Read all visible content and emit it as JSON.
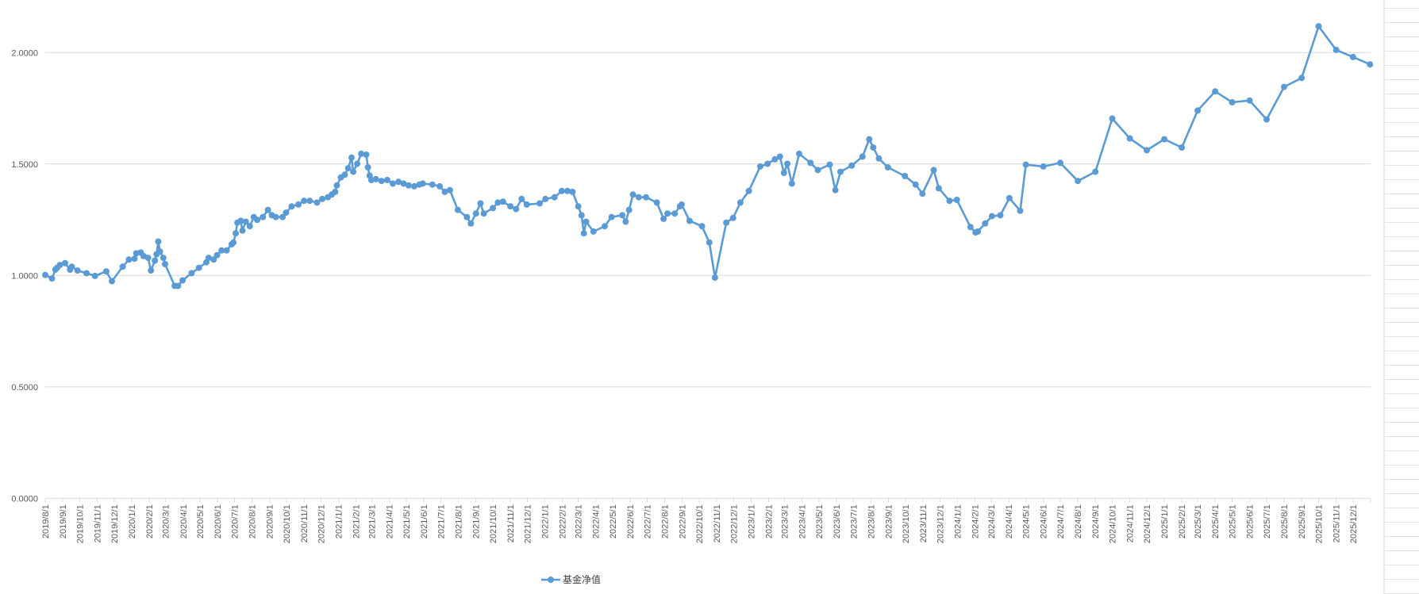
{
  "chart_data": {
    "type": "line",
    "title": "",
    "xlabel": "",
    "ylabel": "",
    "x_axis_type": "date",
    "xlim": [
      "2019-08-01",
      "2026-01-01"
    ],
    "ylim": [
      0,
      2.0
    ],
    "y_ticks": [
      "0.0000",
      "0.5000",
      "1.0000",
      "1.5000",
      "2.0000"
    ],
    "x_tick_labels": [
      "2019/8/1",
      "2019/9/1",
      "2019/10/1",
      "2019/11/1",
      "2019/12/1",
      "2020/1/1",
      "2020/2/1",
      "2020/3/1",
      "2020/4/1",
      "2020/5/1",
      "2020/6/1",
      "2020/7/1",
      "2020/8/1",
      "2020/9/1",
      "2020/10/1",
      "2020/11/1",
      "2020/12/1",
      "2021/1/1",
      "2021/2/1",
      "2021/3/1",
      "2021/4/1",
      "2021/5/1",
      "2021/6/1",
      "2021/7/1",
      "2021/8/1",
      "2021/9/1",
      "2021/10/1",
      "2021/11/1",
      "2021/12/1",
      "2022/1/1",
      "2022/2/1",
      "2022/3/1",
      "2022/4/1",
      "2022/5/1",
      "2022/6/1",
      "2022/7/1",
      "2022/8/1",
      "2022/9/1",
      "2022/10/1",
      "2022/11/1",
      "2022/12/1",
      "2023/1/1",
      "2023/2/1",
      "2023/3/1",
      "2023/4/1",
      "2023/5/1",
      "2023/6/1",
      "2023/7/1",
      "2023/8/1",
      "2023/9/1",
      "2023/10/1",
      "2023/11/1",
      "2023/12/1",
      "2024/1/1",
      "2024/2/1",
      "2024/3/1",
      "2024/4/1",
      "2024/5/1",
      "2024/6/1",
      "2024/7/1",
      "2024/8/1",
      "2024/9/1",
      "2024/10/1",
      "2024/11/1",
      "2024/12/1",
      "2025/1/1",
      "2025/2/1",
      "2025/3/1",
      "2025/4/1",
      "2025/5/1",
      "2025/6/1",
      "2025/7/1",
      "2025/8/1",
      "2025/9/1",
      "2025/10/1",
      "2025/11/1",
      "2025/12/1"
    ],
    "grid": "horizontal",
    "legend": "bottom",
    "series": [
      {
        "name": "基金净值",
        "color": "#5B9BD5",
        "marker": "circle",
        "points": [
          [
            "2019-08-01",
            1.002
          ],
          [
            "2019-08-13",
            0.986
          ],
          [
            "2019-08-19",
            1.026
          ],
          [
            "2019-08-22",
            1.034
          ],
          [
            "2019-08-27",
            1.047
          ],
          [
            "2019-09-05",
            1.055
          ],
          [
            "2019-09-14",
            1.026
          ],
          [
            "2019-09-17",
            1.039
          ],
          [
            "2019-09-27",
            1.022
          ],
          [
            "2019-10-13",
            1.01
          ],
          [
            "2019-10-28",
            0.998
          ],
          [
            "2019-11-17",
            1.018
          ],
          [
            "2019-11-27",
            0.974
          ],
          [
            "2019-12-16",
            1.039
          ],
          [
            "2019-12-27",
            1.071
          ],
          [
            "2020-01-06",
            1.075
          ],
          [
            "2020-01-09",
            1.099
          ],
          [
            "2020-01-17",
            1.103
          ],
          [
            "2020-01-22",
            1.087
          ],
          [
            "2020-01-30",
            1.079
          ],
          [
            "2020-02-04",
            1.022
          ],
          [
            "2020-02-11",
            1.067
          ],
          [
            "2020-02-14",
            1.095
          ],
          [
            "2020-02-17",
            1.152
          ],
          [
            "2020-02-20",
            1.107
          ],
          [
            "2020-02-26",
            1.079
          ],
          [
            "2020-02-29",
            1.051
          ],
          [
            "2020-03-17",
            0.953
          ],
          [
            "2020-03-23",
            0.953
          ],
          [
            "2020-03-31",
            0.978
          ],
          [
            "2020-04-16",
            1.01
          ],
          [
            "2020-04-29",
            1.034
          ],
          [
            "2020-05-12",
            1.059
          ],
          [
            "2020-05-16",
            1.079
          ],
          [
            "2020-05-25",
            1.071
          ],
          [
            "2020-05-31",
            1.091
          ],
          [
            "2020-06-08",
            1.112
          ],
          [
            "2020-06-17",
            1.112
          ],
          [
            "2020-06-26",
            1.14
          ],
          [
            "2020-06-29",
            1.148
          ],
          [
            "2020-07-03",
            1.189
          ],
          [
            "2020-07-06",
            1.237
          ],
          [
            "2020-07-12",
            1.245
          ],
          [
            "2020-07-15",
            1.201
          ],
          [
            "2020-07-21",
            1.241
          ],
          [
            "2020-07-28",
            1.221
          ],
          [
            "2020-08-04",
            1.262
          ],
          [
            "2020-08-10",
            1.249
          ],
          [
            "2020-08-20",
            1.262
          ],
          [
            "2020-08-29",
            1.294
          ],
          [
            "2020-09-05",
            1.27
          ],
          [
            "2020-09-12",
            1.262
          ],
          [
            "2020-09-24",
            1.262
          ],
          [
            "2020-09-30",
            1.282
          ],
          [
            "2020-10-10",
            1.31
          ],
          [
            "2020-10-22",
            1.318
          ],
          [
            "2020-11-01",
            1.335
          ],
          [
            "2020-11-11",
            1.335
          ],
          [
            "2020-11-24",
            1.327
          ],
          [
            "2020-12-03",
            1.343
          ],
          [
            "2020-12-13",
            1.351
          ],
          [
            "2020-12-20",
            1.363
          ],
          [
            "2020-12-26",
            1.375
          ],
          [
            "2020-12-29",
            1.404
          ],
          [
            "2021-01-05",
            1.44
          ],
          [
            "2021-01-12",
            1.452
          ],
          [
            "2021-01-18",
            1.481
          ],
          [
            "2021-01-24",
            1.529
          ],
          [
            "2021-01-27",
            1.465
          ],
          [
            "2021-02-03",
            1.501
          ],
          [
            "2021-02-10",
            1.546
          ],
          [
            "2021-02-19",
            1.542
          ],
          [
            "2021-02-22",
            1.485
          ],
          [
            "2021-02-25",
            1.448
          ],
          [
            "2021-02-28",
            1.428
          ],
          [
            "2021-03-08",
            1.432
          ],
          [
            "2021-03-18",
            1.424
          ],
          [
            "2021-03-28",
            1.428
          ],
          [
            "2021-04-07",
            1.412
          ],
          [
            "2021-04-17",
            1.42
          ],
          [
            "2021-04-26",
            1.412
          ],
          [
            "2021-05-05",
            1.404
          ],
          [
            "2021-05-15",
            1.4
          ],
          [
            "2021-05-24",
            1.408
          ],
          [
            "2021-05-30",
            1.412
          ],
          [
            "2021-06-16",
            1.408
          ],
          [
            "2021-06-29",
            1.4
          ],
          [
            "2021-07-08",
            1.375
          ],
          [
            "2021-07-17",
            1.383
          ],
          [
            "2021-07-31",
            1.294
          ],
          [
            "2021-08-16",
            1.262
          ],
          [
            "2021-08-23",
            1.233
          ],
          [
            "2021-09-01",
            1.278
          ],
          [
            "2021-09-09",
            1.323
          ],
          [
            "2021-09-15",
            1.278
          ],
          [
            "2021-10-01",
            1.302
          ],
          [
            "2021-10-10",
            1.327
          ],
          [
            "2021-10-19",
            1.331
          ],
          [
            "2021-11-01",
            1.31
          ],
          [
            "2021-11-11",
            1.298
          ],
          [
            "2021-11-21",
            1.343
          ],
          [
            "2021-11-30",
            1.318
          ],
          [
            "2021-12-23",
            1.323
          ],
          [
            "2022-01-02",
            1.343
          ],
          [
            "2022-01-18",
            1.351
          ],
          [
            "2022-01-31",
            1.379
          ],
          [
            "2022-02-10",
            1.379
          ],
          [
            "2022-02-19",
            1.375
          ],
          [
            "2022-03-01",
            1.31
          ],
          [
            "2022-03-07",
            1.27
          ],
          [
            "2022-03-11",
            1.189
          ],
          [
            "2022-03-15",
            1.241
          ],
          [
            "2022-03-28",
            1.197
          ],
          [
            "2022-04-17",
            1.221
          ],
          [
            "2022-04-29",
            1.262
          ],
          [
            "2022-05-18",
            1.27
          ],
          [
            "2022-05-24",
            1.241
          ],
          [
            "2022-05-30",
            1.294
          ],
          [
            "2022-06-06",
            1.363
          ],
          [
            "2022-06-16",
            1.351
          ],
          [
            "2022-06-29",
            1.351
          ],
          [
            "2022-07-18",
            1.327
          ],
          [
            "2022-07-30",
            1.254
          ],
          [
            "2022-08-06",
            1.278
          ],
          [
            "2022-08-19",
            1.278
          ],
          [
            "2022-08-28",
            1.31
          ],
          [
            "2022-08-31",
            1.318
          ],
          [
            "2022-09-14",
            1.245
          ],
          [
            "2022-10-06",
            1.221
          ],
          [
            "2022-10-19",
            1.148
          ],
          [
            "2022-10-29",
            0.99
          ],
          [
            "2022-11-18",
            1.237
          ],
          [
            "2022-11-30",
            1.258
          ],
          [
            "2022-12-13",
            1.327
          ],
          [
            "2022-12-28",
            1.379
          ],
          [
            "2023-01-17",
            1.489
          ],
          [
            "2023-01-30",
            1.501
          ],
          [
            "2023-02-12",
            1.521
          ],
          [
            "2023-02-21",
            1.533
          ],
          [
            "2023-02-28",
            1.46
          ],
          [
            "2023-03-06",
            1.501
          ],
          [
            "2023-03-14",
            1.412
          ],
          [
            "2023-03-27",
            1.546
          ],
          [
            "2023-04-16",
            1.505
          ],
          [
            "2023-04-29",
            1.473
          ],
          [
            "2023-05-20",
            1.497
          ],
          [
            "2023-05-30",
            1.383
          ],
          [
            "2023-06-08",
            1.465
          ],
          [
            "2023-06-28",
            1.493
          ],
          [
            "2023-07-17",
            1.533
          ],
          [
            "2023-07-29",
            1.611
          ],
          [
            "2023-08-05",
            1.574
          ],
          [
            "2023-08-15",
            1.525
          ],
          [
            "2023-08-31",
            1.485
          ],
          [
            "2023-09-30",
            1.446
          ],
          [
            "2023-10-19",
            1.408
          ],
          [
            "2023-10-31",
            1.367
          ],
          [
            "2023-11-20",
            1.473
          ],
          [
            "2023-11-29",
            1.391
          ],
          [
            "2023-12-18",
            1.335
          ],
          [
            "2023-12-31",
            1.339
          ],
          [
            "2024-01-24",
            1.217
          ],
          [
            "2024-02-02",
            1.193
          ],
          [
            "2024-02-06",
            1.197
          ],
          [
            "2024-02-19",
            1.233
          ],
          [
            "2024-03-02",
            1.266
          ],
          [
            "2024-03-17",
            1.27
          ],
          [
            "2024-04-02",
            1.347
          ],
          [
            "2024-04-21",
            1.29
          ],
          [
            "2024-05-01",
            1.497
          ],
          [
            "2024-06-01",
            1.489
          ],
          [
            "2024-07-01",
            1.505
          ],
          [
            "2024-08-01",
            1.424
          ],
          [
            "2024-09-01",
            1.465
          ],
          [
            "2024-10-01",
            1.704
          ],
          [
            "2024-11-01",
            1.615
          ],
          [
            "2024-12-01",
            1.562
          ],
          [
            "2025-01-01",
            1.611
          ],
          [
            "2025-02-01",
            1.574
          ],
          [
            "2025-03-01",
            1.74
          ],
          [
            "2025-04-01",
            1.826
          ],
          [
            "2025-05-01",
            1.777
          ],
          [
            "2025-06-01",
            1.785
          ],
          [
            "2025-07-01",
            1.7
          ],
          [
            "2025-08-01",
            1.846
          ],
          [
            "2025-09-01",
            1.886
          ],
          [
            "2025-10-01",
            2.118
          ],
          [
            "2025-11-01",
            2.012
          ],
          [
            "2025-12-01",
            1.98
          ],
          [
            "2025-12-31",
            1.947
          ]
        ]
      }
    ]
  }
}
